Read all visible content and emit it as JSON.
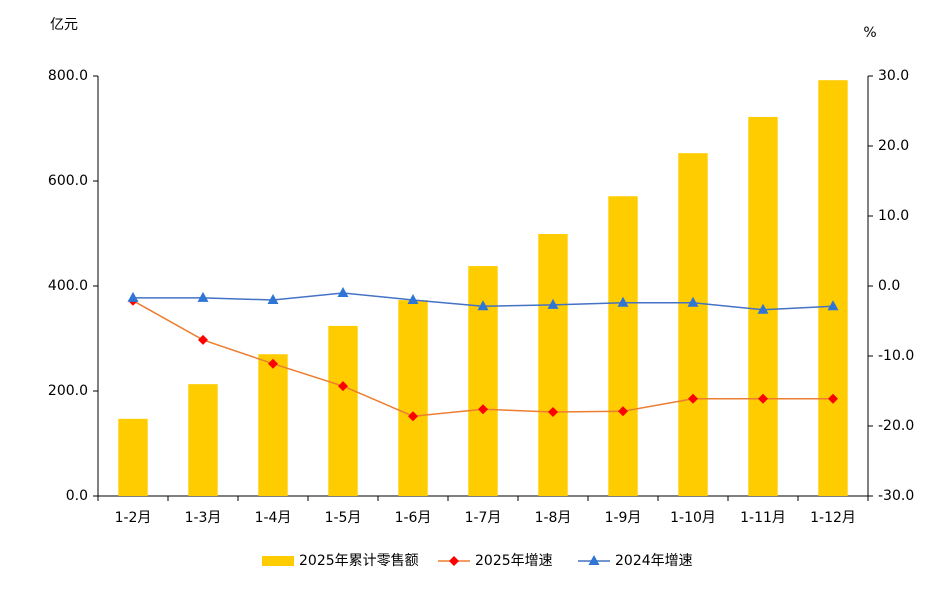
{
  "chart_data": {
    "type": "bar",
    "y_unit": "亿元",
    "y2_unit": "%",
    "categories": [
      "1-2月",
      "1-3月",
      "1-4月",
      "1-5月",
      "1-6月",
      "1-7月",
      "1-8月",
      "1-9月",
      "1-10月",
      "1-11月",
      "1-12月"
    ],
    "series": [
      {
        "name": "2025年累计零售额",
        "type": "bar",
        "color": "#ffcc00",
        "values": [
          147,
          213,
          270,
          324,
          373,
          438,
          499,
          571,
          653,
          722,
          792
        ]
      },
      {
        "name": "2025年增速",
        "type": "line",
        "marker": "diamond",
        "color": "#ff0000",
        "line_color": "#ed7d31",
        "axis": "y2",
        "values": [
          -2.1,
          -7.7,
          -11.1,
          -14.3,
          -18.6,
          -17.6,
          -18.0,
          -17.9,
          -16.1,
          -16.1,
          -16.1
        ]
      },
      {
        "name": "2024年增速",
        "type": "line",
        "marker": "triangle",
        "color": "#2e75d6",
        "line_color": "#4472c4",
        "axis": "y2",
        "values": [
          -1.7,
          -1.7,
          -2.0,
          -1.0,
          -2.0,
          -2.9,
          -2.7,
          -2.4,
          -2.4,
          -3.4,
          -2.9
        ]
      }
    ],
    "ylim": [
      0,
      800
    ],
    "yticks": [
      {
        "value": 0,
        "label": "0.0"
      },
      {
        "value": 200,
        "label": "200.0"
      },
      {
        "value": 400,
        "label": "400.0"
      },
      {
        "value": 600,
        "label": "600.0"
      },
      {
        "value": 800,
        "label": "800.0"
      }
    ],
    "y2lim": [
      -30,
      30
    ],
    "y2ticks": [
      {
        "value": -30,
        "label": "-30.0"
      },
      {
        "value": -20,
        "label": "-20.0"
      },
      {
        "value": -10,
        "label": "-10.0"
      },
      {
        "value": 0,
        "label": "0.0"
      },
      {
        "value": 10,
        "label": "10.0"
      },
      {
        "value": 20,
        "label": "20.0"
      },
      {
        "value": 30,
        "label": "30.0"
      }
    ],
    "grid": false,
    "legend": "bottom"
  }
}
